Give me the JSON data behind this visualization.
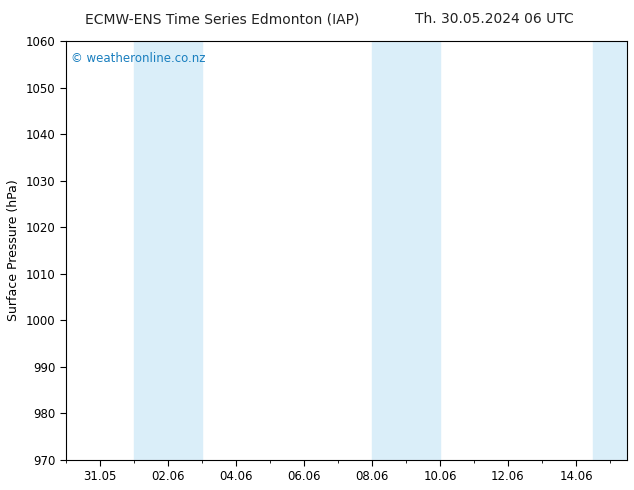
{
  "title_left": "ECMW-ENS Time Series Edmonton (IAP)",
  "title_right": "Th. 30.05.2024 06 UTC",
  "ylabel": "Surface Pressure (hPa)",
  "ylim": [
    970,
    1060
  ],
  "yticks": [
    970,
    980,
    990,
    1000,
    1010,
    1020,
    1030,
    1040,
    1050,
    1060
  ],
  "xlim_start": -0.5,
  "xlim_end": 15.5,
  "xtick_labels": [
    "31.05",
    "02.06",
    "04.06",
    "06.06",
    "08.06",
    "10.06",
    "12.06",
    "14.06"
  ],
  "xtick_positions": [
    0,
    2,
    4,
    6,
    8,
    10,
    12,
    14
  ],
  "shaded_bands": [
    {
      "x_start": 1.0,
      "x_end": 2.0,
      "color": "#daeef9"
    },
    {
      "x_start": 2.0,
      "x_end": 3.0,
      "color": "#daeef9"
    },
    {
      "x_start": 8.0,
      "x_end": 9.0,
      "color": "#daeef9"
    },
    {
      "x_start": 9.0,
      "x_end": 10.0,
      "color": "#daeef9"
    },
    {
      "x_start": 14.5,
      "x_end": 15.5,
      "color": "#daeef9"
    }
  ],
  "watermark": "© weatheronline.co.nz",
  "watermark_color": "#1a7fbf",
  "bg_color": "#ffffff",
  "plot_bg_color": "#ffffff",
  "title_fontsize": 10,
  "label_fontsize": 9,
  "tick_fontsize": 8.5
}
